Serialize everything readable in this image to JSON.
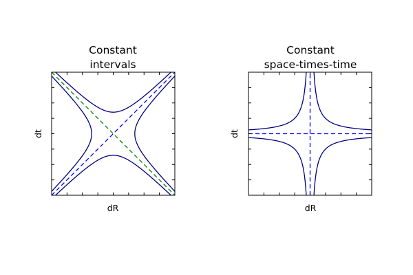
{
  "chart_data": [
    {
      "type": "line",
      "title_lines": [
        "Constant",
        "intervals"
      ],
      "xlabel": "dR",
      "ylabel": "dt",
      "xlim": [
        -2,
        2
      ],
      "ylim": [
        -2,
        2
      ],
      "ticks": [
        -2,
        -1.5,
        -1,
        -0.5,
        0,
        0.5,
        1,
        1.5,
        2
      ],
      "tick_labels_shown": false,
      "grid": false,
      "curves": [
        {
          "name": "",
          "kind": "hyperbola-vertical",
          "equation": "t^2 - R^2 = 0.7^2, t > 0",
          "a": 0.7,
          "branch": 1,
          "color": "#000080",
          "dash": "solid"
        },
        {
          "name": "",
          "kind": "hyperbola-vertical",
          "equation": "t^2 - R^2 = 0.7^2, t < 0",
          "a": 0.7,
          "branch": -1,
          "color": "#000080",
          "dash": "solid"
        },
        {
          "name": "",
          "kind": "hyperbola-horizontal",
          "equation": "R^2 - t^2 = 0.7^2, R > 0",
          "a": 0.7,
          "branch": 1,
          "color": "#000080",
          "dash": "solid"
        },
        {
          "name": "",
          "kind": "hyperbola-horizontal",
          "equation": "R^2 - t^2 = 0.7^2, R < 0",
          "a": 0.7,
          "branch": -1,
          "color": "#000080",
          "dash": "solid"
        },
        {
          "name": "",
          "kind": "line",
          "equation": "t = R",
          "x": [
            -2,
            2
          ],
          "y": [
            -2,
            2
          ],
          "color": "#0000ff",
          "dash": "dashed"
        },
        {
          "name": "",
          "kind": "line",
          "equation": "t = -R",
          "x": [
            -2,
            2
          ],
          "y": [
            2,
            -2
          ],
          "color": "#008000",
          "dash": "dashed"
        }
      ]
    },
    {
      "type": "line",
      "title_lines": [
        "Constant",
        "space-times-time"
      ],
      "xlabel": "dR",
      "ylabel": "dt",
      "xlim": [
        -2,
        2
      ],
      "ylim": [
        -2,
        2
      ],
      "ticks": [
        -2,
        -1.5,
        -1,
        -0.5,
        0,
        0.5,
        1,
        1.5,
        2
      ],
      "tick_labels_shown": false,
      "grid": false,
      "curves": [
        {
          "name": "",
          "kind": "rect-hyperbola",
          "equation": "R * t = 0.25, quadrant I",
          "k": 0.25,
          "sign_x": 1,
          "sign_y": 1,
          "color": "#000080",
          "dash": "solid"
        },
        {
          "name": "",
          "kind": "rect-hyperbola",
          "equation": "R * t = 0.25, quadrant III",
          "k": 0.25,
          "sign_x": -1,
          "sign_y": -1,
          "color": "#000080",
          "dash": "solid"
        },
        {
          "name": "",
          "kind": "rect-hyperbola",
          "equation": "R * t = -0.25, quadrant II",
          "k": 0.25,
          "sign_x": -1,
          "sign_y": 1,
          "color": "#000080",
          "dash": "solid"
        },
        {
          "name": "",
          "kind": "rect-hyperbola",
          "equation": "R * t = -0.25, quadrant IV",
          "k": 0.25,
          "sign_x": 1,
          "sign_y": -1,
          "color": "#000080",
          "dash": "solid"
        },
        {
          "name": "",
          "kind": "line",
          "equation": "R = 0",
          "x": [
            0,
            0
          ],
          "y": [
            -2,
            2
          ],
          "color": "#0000ff",
          "dash": "dashed"
        },
        {
          "name": "",
          "kind": "line",
          "equation": "t = 0",
          "x": [
            -2,
            2
          ],
          "y": [
            0,
            0
          ],
          "color": "#0000ff",
          "dash": "dashed"
        }
      ]
    }
  ]
}
